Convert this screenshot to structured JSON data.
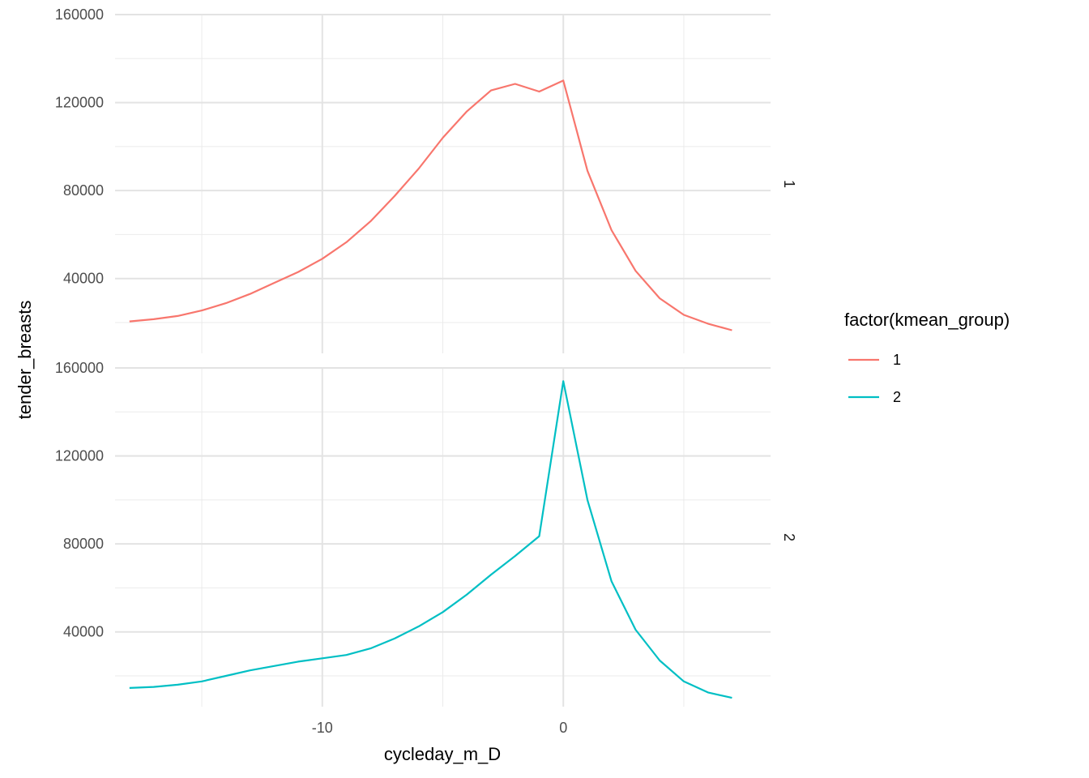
{
  "chart_data": {
    "type": "line",
    "facet_by": "kmean_group",
    "xlabel": "cycleday_m_D",
    "ylabel": "tender_breasts",
    "xlim": [
      -18.6,
      8.6
    ],
    "x_breaks": [
      -10,
      0
    ],
    "x_tick_labels": [
      "-10",
      "0"
    ],
    "ylim": [
      6000,
      160000
    ],
    "y_breaks": [
      40000,
      80000,
      120000,
      160000
    ],
    "y_tick_labels": [
      "40000",
      "80000",
      "120000",
      "160000"
    ],
    "grid": true,
    "legend": {
      "title": "factor(kmean_group)",
      "position": "right",
      "entries": [
        {
          "label": "1",
          "color": "#F8766D"
        },
        {
          "label": "2",
          "color": "#00BFC4"
        }
      ]
    },
    "x": [
      -18,
      -17,
      -16,
      -15,
      -14,
      -13,
      -12,
      -11,
      -10,
      -9,
      -8,
      -7,
      -6,
      -5,
      -4,
      -3,
      -2,
      -1,
      0,
      1,
      2,
      3,
      4,
      5,
      6,
      7
    ],
    "panels": [
      {
        "strip_label": "1",
        "color": "#F8766D",
        "values": [
          20500,
          21500,
          23000,
          25500,
          28800,
          33000,
          38000,
          43000,
          49000,
          56500,
          66000,
          77500,
          90000,
          104000,
          116000,
          125500,
          128500,
          125000,
          130000,
          89000,
          62000,
          43500,
          31000,
          23500,
          19500,
          16500
        ]
      },
      {
        "strip_label": "2",
        "color": "#00BFC4",
        "values": [
          14500,
          15000,
          16000,
          17500,
          20000,
          22500,
          24500,
          26500,
          28000,
          29500,
          32500,
          37000,
          42500,
          49000,
          57000,
          66000,
          74500,
          83500,
          154000,
          100000,
          63000,
          41000,
          27000,
          17500,
          12500,
          10000
        ]
      }
    ]
  }
}
